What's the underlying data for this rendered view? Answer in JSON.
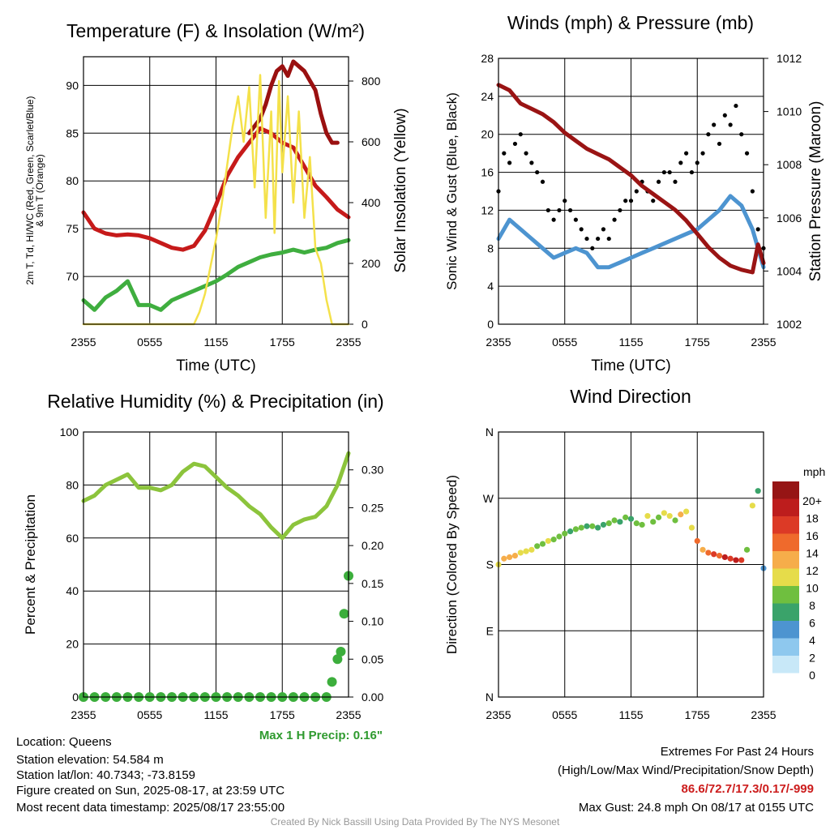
{
  "colors": {
    "air_temp": "#c61a1a",
    "dewpoint": "#3fae3f",
    "heat_index": "#9a1010",
    "insolation": "#f4e14a",
    "wind_speed": "#4d94d0",
    "gust": "#000000",
    "pressure": "#9a1414",
    "humidity": "#8cc43c",
    "precip": "#3cae3c",
    "precip_label": "#2e9a2e",
    "extremes_values": "#cc1c1c",
    "credit": "#999999"
  },
  "chart_data": [
    {
      "id": "temperature",
      "type": "line",
      "title": "Temperature (F) & Insolation (W/m²)",
      "xlabel": "Time (UTC)",
      "ylabel_line1": "2m T, Td, HI/WC (Red, Green, Scarlet/Blue)",
      "ylabel_line2": "& 9m T (Orange)",
      "ylabel_right": "Solar Insolation (Yellow)",
      "xticks": [
        "2355",
        "0555",
        "1155",
        "1755",
        "2355"
      ],
      "yticks_left": [
        70,
        75,
        80,
        85,
        90
      ],
      "yticks_right": [
        0,
        200,
        400,
        600,
        800
      ],
      "ylim": [
        65,
        93
      ],
      "ylim_right": [
        0,
        880
      ],
      "series": [
        {
          "key": "air_temp",
          "x": [
            0,
            1,
            2,
            3,
            4,
            5,
            6,
            7,
            8,
            9,
            10,
            11,
            12,
            13,
            14,
            15,
            16,
            17,
            18,
            19,
            20,
            21,
            22,
            23,
            24
          ],
          "values": [
            76.7,
            75,
            74.5,
            74.3,
            74.4,
            74.3,
            74,
            73.5,
            73,
            72.8,
            73.2,
            74.8,
            77.5,
            80.5,
            82.5,
            84,
            85.5,
            85,
            84,
            83.5,
            81.5,
            79.5,
            78.3,
            77,
            76.2
          ]
        },
        {
          "key": "dewpoint",
          "x": [
            0,
            1,
            2,
            3,
            4,
            5,
            6,
            7,
            8,
            9,
            10,
            11,
            12,
            13,
            14,
            15,
            16,
            17,
            18,
            19,
            20,
            21,
            22,
            23,
            24
          ],
          "values": [
            67.5,
            66.5,
            67.8,
            68.5,
            69.5,
            67,
            67,
            66.5,
            67.5,
            68,
            68.5,
            69,
            69.5,
            70.2,
            71,
            71.5,
            72,
            72.3,
            72.5,
            72.8,
            72.5,
            72.8,
            73,
            73.5,
            73.8
          ]
        },
        {
          "key": "heat_index",
          "x": [
            15,
            16,
            16.5,
            17,
            17.5,
            18,
            18.5,
            19,
            19.5,
            20,
            20.5,
            21,
            21.5,
            22,
            22.5,
            23
          ],
          "values": [
            85,
            86.5,
            88,
            90,
            91.5,
            92,
            91,
            92.5,
            92,
            91.5,
            90.5,
            89.5,
            87,
            85,
            84,
            84
          ]
        },
        {
          "key": "insolation",
          "x": [
            0,
            10,
            10.5,
            11,
            11.5,
            12,
            12.5,
            13,
            13.5,
            14,
            14.5,
            15,
            15.5,
            16,
            16.5,
            17,
            17.3,
            17.7,
            18,
            18.5,
            19,
            19.5,
            20,
            20.5,
            21,
            21.5,
            22,
            22.5,
            24
          ],
          "values": [
            0,
            0,
            40,
            100,
            190,
            280,
            390,
            520,
            650,
            750,
            600,
            780,
            450,
            820,
            350,
            700,
            300,
            800,
            500,
            750,
            400,
            700,
            350,
            550,
            250,
            200,
            80,
            0,
            0
          ]
        }
      ]
    },
    {
      "id": "winds",
      "type": "line",
      "title": "Winds (mph) & Pressure (mb)",
      "xlabel": "Time (UTC)",
      "ylabel": "Sonic Wind & Gust (Blue, Black)",
      "ylabel_right": "Station Pressure (Maroon)",
      "xticks": [
        "2355",
        "0555",
        "1155",
        "1755",
        "2355"
      ],
      "yticks_left": [
        0,
        4,
        8,
        12,
        16,
        20,
        24,
        28
      ],
      "yticks_right": [
        1002,
        1004,
        1006,
        1008,
        1010,
        1012
      ],
      "ylim": [
        0,
        28
      ],
      "ylim_right": [
        1002,
        1012
      ],
      "series": [
        {
          "key": "wind_speed",
          "x": [
            0,
            1,
            2,
            3,
            4,
            5,
            6,
            7,
            8,
            9,
            10,
            11,
            12,
            13,
            14,
            15,
            16,
            17,
            18,
            19,
            20,
            21,
            22,
            23,
            24
          ],
          "values": [
            9,
            11,
            10,
            9,
            8,
            7,
            7.5,
            8,
            7.5,
            6,
            6,
            6.5,
            7,
            7.5,
            8,
            8.5,
            9,
            9.5,
            10,
            11,
            12,
            13.5,
            12.5,
            10,
            6
          ]
        },
        {
          "key": "gust",
          "x": [
            0,
            0.5,
            1,
            1.5,
            2,
            2.5,
            3,
            3.5,
            4,
            4.5,
            5,
            5.5,
            6,
            6.5,
            7,
            7.5,
            8,
            8.5,
            9,
            9.5,
            10,
            10.5,
            11,
            11.5,
            12,
            12.5,
            13,
            13.5,
            14,
            14.5,
            15,
            15.5,
            16,
            16.5,
            17,
            17.5,
            18,
            18.5,
            19,
            19.5,
            20,
            20.5,
            21,
            21.5,
            22,
            22.5,
            23,
            23.5,
            24
          ],
          "values": [
            14,
            18,
            17,
            19,
            20,
            18,
            17,
            16,
            15,
            12,
            11,
            12,
            13,
            12,
            11,
            10,
            9,
            8,
            9,
            10,
            9,
            11,
            12,
            13,
            13,
            14,
            15,
            14,
            13,
            15,
            16,
            16,
            15,
            17,
            18,
            16,
            17,
            18,
            20,
            21,
            19,
            22,
            21,
            23,
            20,
            18,
            14,
            10,
            8
          ]
        },
        {
          "key": "pressure",
          "x": [
            0,
            1,
            2,
            3,
            4,
            5,
            6,
            7,
            8,
            9,
            10,
            11,
            12,
            13,
            14,
            15,
            16,
            17,
            18,
            19,
            20,
            21,
            22,
            23,
            23.5,
            24
          ],
          "values": [
            1011,
            1010.8,
            1010.3,
            1010.1,
            1009.9,
            1009.6,
            1009.2,
            1008.9,
            1008.6,
            1008.4,
            1008.2,
            1007.9,
            1007.6,
            1007.2,
            1006.9,
            1006.6,
            1006.3,
            1005.9,
            1005.4,
            1004.9,
            1004.5,
            1004.2,
            1004.05,
            1003.95,
            1005,
            1004.3
          ]
        }
      ]
    },
    {
      "id": "humidity",
      "type": "line",
      "title": "Relative Humidity (%) & Precipitation (in)",
      "ylabel": "Percent & Precipitation",
      "xticks": [
        "2355",
        "0555",
        "1155",
        "1755",
        "2355"
      ],
      "yticks_left": [
        0,
        20,
        40,
        60,
        80,
        100
      ],
      "yticks_right": [
        "0.00",
        "0.05",
        "0.10",
        "0.15",
        "0.20",
        "0.25",
        "0.30"
      ],
      "ylim": [
        0,
        100
      ],
      "ylim_right": [
        0,
        0.35
      ],
      "precip_max_label": "Max 1 H Precip: 0.16\"",
      "series": [
        {
          "key": "humidity",
          "x": [
            0,
            1,
            2,
            3,
            4,
            5,
            6,
            7,
            8,
            9,
            10,
            11,
            12,
            13,
            14,
            15,
            16,
            17,
            18,
            19,
            20,
            21,
            22,
            23,
            24
          ],
          "values": [
            74,
            76,
            80,
            82,
            84,
            79,
            79,
            78,
            80,
            85,
            88,
            87,
            83,
            79,
            76,
            72,
            69,
            64,
            60,
            65,
            67,
            68,
            72,
            80,
            92
          ]
        },
        {
          "key": "precip",
          "x": [
            0,
            1,
            2,
            3,
            4,
            5,
            6,
            7,
            8,
            9,
            10,
            11,
            12,
            13,
            14,
            15,
            16,
            17,
            18,
            19,
            20,
            21,
            22,
            22.5,
            23,
            23.3,
            23.6,
            24
          ],
          "values": [
            0,
            0,
            0,
            0,
            0,
            0,
            0,
            0,
            0,
            0,
            0,
            0,
            0,
            0,
            0,
            0,
            0,
            0,
            0,
            0,
            0,
            0,
            0,
            0.02,
            0.05,
            0.06,
            0.11,
            0.16
          ]
        }
      ]
    },
    {
      "id": "wind_direction",
      "type": "scatter",
      "title": "Wind Direction",
      "ylabel": "Direction (Colored By Speed)",
      "xticks": [
        "2355",
        "0555",
        "1155",
        "1755",
        "2355"
      ],
      "yticks_left": [
        "N",
        "E",
        "S",
        "W",
        "N"
      ],
      "ylim": [
        0,
        360
      ],
      "colorbar_title": "mph",
      "colorbar_labels": [
        "0",
        "2",
        "4",
        "6",
        "8",
        "10",
        "12",
        "14",
        "16",
        "18",
        "20+"
      ],
      "colorbar_colors": [
        "#c8e8f8",
        "#8ec8ee",
        "#4d94d0",
        "#3aa36a",
        "#6fbf3f",
        "#e6dc4a",
        "#f6ad4a",
        "#ef6a2c",
        "#dc3a26",
        "#bd1d1d",
        "#961515"
      ],
      "series": [
        {
          "key": "wind_dir",
          "x": [
            0,
            0.5,
            1,
            1.5,
            2,
            2.5,
            3,
            3.5,
            4,
            4.5,
            5,
            5.5,
            6,
            6.5,
            7,
            7.5,
            8,
            8.5,
            9,
            9.5,
            10,
            10.5,
            11,
            11.5,
            12,
            12.5,
            13,
            13.5,
            14,
            14.5,
            15,
            15.5,
            16,
            16.5,
            17,
            17.5,
            18,
            18.5,
            19,
            19.5,
            20,
            20.5,
            21,
            21.5,
            22,
            22.5,
            23,
            23.5,
            24
          ],
          "values": [
            180,
            188,
            190,
            192,
            196,
            198,
            200,
            205,
            208,
            212,
            214,
            218,
            222,
            225,
            228,
            230,
            232,
            232,
            230,
            234,
            236,
            240,
            238,
            244,
            242,
            236,
            234,
            246,
            238,
            244,
            250,
            246,
            240,
            248,
            252,
            230,
            212,
            200,
            196,
            194,
            192,
            190,
            188,
            186,
            186,
            200,
            260,
            280,
            175
          ],
          "speeds": [
            9,
            12,
            11,
            12,
            10,
            9,
            10,
            8,
            7,
            9,
            8,
            7,
            7,
            6,
            8,
            7,
            6,
            7,
            6,
            6,
            7,
            8,
            6,
            7,
            6,
            7,
            8,
            9,
            8,
            7,
            9,
            10,
            8,
            11,
            9,
            10,
            13,
            12,
            14,
            15,
            13,
            17,
            16,
            18,
            16,
            8,
            10,
            6,
            4
          ]
        }
      ]
    }
  ],
  "info": {
    "location": "Location: Queens",
    "elevation": "Station elevation: 54.584 m",
    "latlon": "Station lat/lon: 40.7343; -73.8159",
    "created": "Figure created on Sun, 2025-08-17, at 23:59 UTC",
    "recent": "Most recent data timestamp: 2025/08/17 23:55:00"
  },
  "extremes": {
    "title": "Extremes For Past 24 Hours",
    "legend": "(High/Low/Max Wind/Precipitation/Snow Depth)",
    "values": "86.6/72.7/17.3/0.17/-999",
    "gust": "Max Gust: 24.8 mph On 08/17 at 0155 UTC"
  },
  "credit": "Created By Nick Bassill Using Data Provided By The NYS Mesonet"
}
